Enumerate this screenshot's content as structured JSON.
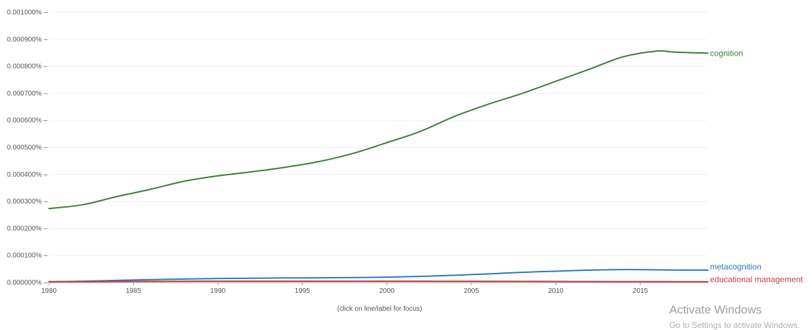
{
  "chart_data": {
    "type": "line",
    "x": [
      1980,
      1982,
      1984,
      1986,
      1988,
      1990,
      1992,
      1994,
      1996,
      1998,
      2000,
      2002,
      2004,
      2006,
      2008,
      2010,
      2012,
      2014,
      2016,
      2017,
      2019
    ],
    "series": [
      {
        "name": "cognition",
        "color": "#3a7d35",
        "values": [
          0.000274,
          0.000288,
          0.000318,
          0.000345,
          0.000375,
          0.000395,
          0.00041,
          0.000427,
          0.000448,
          0.000478,
          0.000518,
          0.00056,
          0.000615,
          0.00066,
          0.0007,
          0.000745,
          0.00079,
          0.000836,
          0.000857,
          0.000853,
          0.000849
        ]
      },
      {
        "name": "metacognition",
        "color": "#2f76bb",
        "values": [
          3e-06,
          5e-06,
          8e-06,
          1.1e-05,
          1.3e-05,
          1.5e-05,
          1.6e-05,
          1.7e-05,
          1.75e-05,
          1.85e-05,
          2e-05,
          2.3e-05,
          2.7e-05,
          3.2e-05,
          3.8e-05,
          4.2e-05,
          4.6e-05,
          4.8e-05,
          4.7e-05,
          4.65e-05,
          4.6e-05
        ]
      },
      {
        "name": "educational management",
        "color": "#c9403a",
        "values": [
          3e-06,
          3.5e-06,
          4e-06,
          4.5e-06,
          4.8e-06,
          5e-06,
          5e-06,
          5e-06,
          5e-06,
          5e-06,
          5.2e-06,
          5e-06,
          4.8e-06,
          4.5e-06,
          4.2e-06,
          4e-06,
          3.8e-06,
          3.6e-06,
          3.5e-06,
          3.4e-06,
          3.3e-06
        ]
      }
    ],
    "yticks": [
      "0.000000%",
      "0.000100%",
      "0.000200%",
      "0.000300%",
      "0.000400%",
      "0.000500%",
      "0.000600%",
      "0.000700%",
      "0.000800%",
      "0.000900%",
      "0.001000%"
    ],
    "xticks": [
      "1980",
      "1985",
      "1990",
      "1995",
      "2000",
      "2005",
      "2010",
      "2015"
    ],
    "xlim": [
      1980,
      2019
    ],
    "ylim": [
      0,
      0.001
    ],
    "grid": true
  },
  "hint_text": "(click on line/label for focus)",
  "watermark": {
    "title": "Activate Windows",
    "subtitle": "Go to Settings to activate Windows."
  }
}
